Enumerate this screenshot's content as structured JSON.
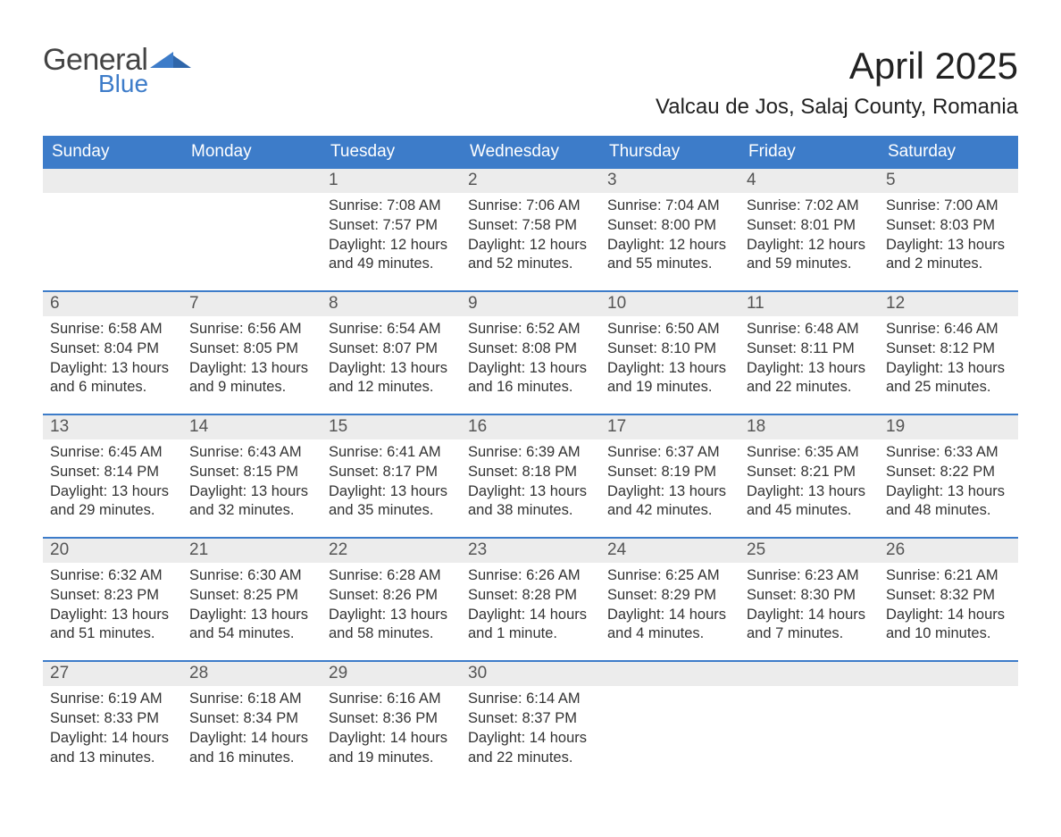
{
  "logo": {
    "word1": "General",
    "word2": "Blue",
    "mark_color": "#3d7cc9"
  },
  "title": {
    "month_year": "April 2025",
    "location": "Valcau de Jos, Salaj County, Romania"
  },
  "colors": {
    "header_bg": "#3d7cc9",
    "header_text": "#ffffff",
    "daynum_bg": "#ececec",
    "border": "#3d7cc9",
    "body_text": "#333333"
  },
  "daysOfWeek": [
    "Sunday",
    "Monday",
    "Tuesday",
    "Wednesday",
    "Thursday",
    "Friday",
    "Saturday"
  ],
  "weeks": [
    [
      {
        "blank": true
      },
      {
        "blank": true
      },
      {
        "n": "1",
        "sunrise": "Sunrise: 7:08 AM",
        "sunset": "Sunset: 7:57 PM",
        "day1": "Daylight: 12 hours",
        "day2": "and 49 minutes."
      },
      {
        "n": "2",
        "sunrise": "Sunrise: 7:06 AM",
        "sunset": "Sunset: 7:58 PM",
        "day1": "Daylight: 12 hours",
        "day2": "and 52 minutes."
      },
      {
        "n": "3",
        "sunrise": "Sunrise: 7:04 AM",
        "sunset": "Sunset: 8:00 PM",
        "day1": "Daylight: 12 hours",
        "day2": "and 55 minutes."
      },
      {
        "n": "4",
        "sunrise": "Sunrise: 7:02 AM",
        "sunset": "Sunset: 8:01 PM",
        "day1": "Daylight: 12 hours",
        "day2": "and 59 minutes."
      },
      {
        "n": "5",
        "sunrise": "Sunrise: 7:00 AM",
        "sunset": "Sunset: 8:03 PM",
        "day1": "Daylight: 13 hours",
        "day2": "and 2 minutes."
      }
    ],
    [
      {
        "n": "6",
        "sunrise": "Sunrise: 6:58 AM",
        "sunset": "Sunset: 8:04 PM",
        "day1": "Daylight: 13 hours",
        "day2": "and 6 minutes."
      },
      {
        "n": "7",
        "sunrise": "Sunrise: 6:56 AM",
        "sunset": "Sunset: 8:05 PM",
        "day1": "Daylight: 13 hours",
        "day2": "and 9 minutes."
      },
      {
        "n": "8",
        "sunrise": "Sunrise: 6:54 AM",
        "sunset": "Sunset: 8:07 PM",
        "day1": "Daylight: 13 hours",
        "day2": "and 12 minutes."
      },
      {
        "n": "9",
        "sunrise": "Sunrise: 6:52 AM",
        "sunset": "Sunset: 8:08 PM",
        "day1": "Daylight: 13 hours",
        "day2": "and 16 minutes."
      },
      {
        "n": "10",
        "sunrise": "Sunrise: 6:50 AM",
        "sunset": "Sunset: 8:10 PM",
        "day1": "Daylight: 13 hours",
        "day2": "and 19 minutes."
      },
      {
        "n": "11",
        "sunrise": "Sunrise: 6:48 AM",
        "sunset": "Sunset: 8:11 PM",
        "day1": "Daylight: 13 hours",
        "day2": "and 22 minutes."
      },
      {
        "n": "12",
        "sunrise": "Sunrise: 6:46 AM",
        "sunset": "Sunset: 8:12 PM",
        "day1": "Daylight: 13 hours",
        "day2": "and 25 minutes."
      }
    ],
    [
      {
        "n": "13",
        "sunrise": "Sunrise: 6:45 AM",
        "sunset": "Sunset: 8:14 PM",
        "day1": "Daylight: 13 hours",
        "day2": "and 29 minutes."
      },
      {
        "n": "14",
        "sunrise": "Sunrise: 6:43 AM",
        "sunset": "Sunset: 8:15 PM",
        "day1": "Daylight: 13 hours",
        "day2": "and 32 minutes."
      },
      {
        "n": "15",
        "sunrise": "Sunrise: 6:41 AM",
        "sunset": "Sunset: 8:17 PM",
        "day1": "Daylight: 13 hours",
        "day2": "and 35 minutes."
      },
      {
        "n": "16",
        "sunrise": "Sunrise: 6:39 AM",
        "sunset": "Sunset: 8:18 PM",
        "day1": "Daylight: 13 hours",
        "day2": "and 38 minutes."
      },
      {
        "n": "17",
        "sunrise": "Sunrise: 6:37 AM",
        "sunset": "Sunset: 8:19 PM",
        "day1": "Daylight: 13 hours",
        "day2": "and 42 minutes."
      },
      {
        "n": "18",
        "sunrise": "Sunrise: 6:35 AM",
        "sunset": "Sunset: 8:21 PM",
        "day1": "Daylight: 13 hours",
        "day2": "and 45 minutes."
      },
      {
        "n": "19",
        "sunrise": "Sunrise: 6:33 AM",
        "sunset": "Sunset: 8:22 PM",
        "day1": "Daylight: 13 hours",
        "day2": "and 48 minutes."
      }
    ],
    [
      {
        "n": "20",
        "sunrise": "Sunrise: 6:32 AM",
        "sunset": "Sunset: 8:23 PM",
        "day1": "Daylight: 13 hours",
        "day2": "and 51 minutes."
      },
      {
        "n": "21",
        "sunrise": "Sunrise: 6:30 AM",
        "sunset": "Sunset: 8:25 PM",
        "day1": "Daylight: 13 hours",
        "day2": "and 54 minutes."
      },
      {
        "n": "22",
        "sunrise": "Sunrise: 6:28 AM",
        "sunset": "Sunset: 8:26 PM",
        "day1": "Daylight: 13 hours",
        "day2": "and 58 minutes."
      },
      {
        "n": "23",
        "sunrise": "Sunrise: 6:26 AM",
        "sunset": "Sunset: 8:28 PM",
        "day1": "Daylight: 14 hours",
        "day2": "and 1 minute."
      },
      {
        "n": "24",
        "sunrise": "Sunrise: 6:25 AM",
        "sunset": "Sunset: 8:29 PM",
        "day1": "Daylight: 14 hours",
        "day2": "and 4 minutes."
      },
      {
        "n": "25",
        "sunrise": "Sunrise: 6:23 AM",
        "sunset": "Sunset: 8:30 PM",
        "day1": "Daylight: 14 hours",
        "day2": "and 7 minutes."
      },
      {
        "n": "26",
        "sunrise": "Sunrise: 6:21 AM",
        "sunset": "Sunset: 8:32 PM",
        "day1": "Daylight: 14 hours",
        "day2": "and 10 minutes."
      }
    ],
    [
      {
        "n": "27",
        "sunrise": "Sunrise: 6:19 AM",
        "sunset": "Sunset: 8:33 PM",
        "day1": "Daylight: 14 hours",
        "day2": "and 13 minutes."
      },
      {
        "n": "28",
        "sunrise": "Sunrise: 6:18 AM",
        "sunset": "Sunset: 8:34 PM",
        "day1": "Daylight: 14 hours",
        "day2": "and 16 minutes."
      },
      {
        "n": "29",
        "sunrise": "Sunrise: 6:16 AM",
        "sunset": "Sunset: 8:36 PM",
        "day1": "Daylight: 14 hours",
        "day2": "and 19 minutes."
      },
      {
        "n": "30",
        "sunrise": "Sunrise: 6:14 AM",
        "sunset": "Sunset: 8:37 PM",
        "day1": "Daylight: 14 hours",
        "day2": "and 22 minutes."
      },
      {
        "blank": true
      },
      {
        "blank": true
      },
      {
        "blank": true
      }
    ]
  ]
}
